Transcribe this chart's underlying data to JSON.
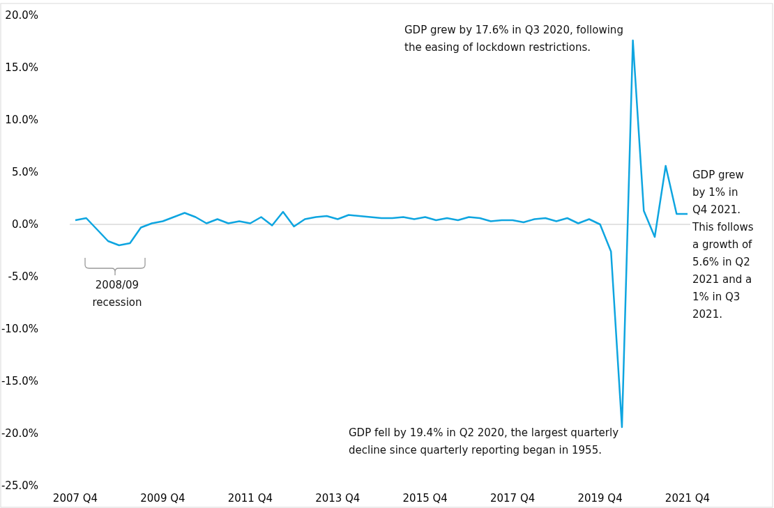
{
  "chart_data": {
    "type": "line",
    "categories": [
      "2007 Q4",
      null,
      null,
      null,
      null,
      null,
      null,
      null,
      "2009 Q4",
      null,
      null,
      null,
      null,
      null,
      null,
      null,
      "2011 Q4",
      null,
      null,
      null,
      null,
      null,
      null,
      null,
      "2013 Q4",
      null,
      null,
      null,
      null,
      null,
      null,
      null,
      "2015 Q4",
      null,
      null,
      null,
      null,
      null,
      null,
      null,
      "2017 Q4",
      null,
      null,
      null,
      null,
      null,
      null,
      null,
      "2019 Q4",
      null,
      null,
      null,
      null,
      null,
      null,
      null,
      "2021 Q4"
    ],
    "series": [
      {
        "color": "#0ea5e0",
        "values": [
          0.4,
          0.6,
          -0.5,
          -1.6,
          -2.0,
          -1.8,
          -0.3,
          0.1,
          0.3,
          0.7,
          1.1,
          0.7,
          0.1,
          0.5,
          0.1,
          0.3,
          0.1,
          0.7,
          -0.1,
          1.2,
          -0.2,
          0.5,
          0.7,
          0.8,
          0.5,
          0.9,
          0.8,
          0.7,
          0.6,
          0.6,
          0.7,
          0.5,
          0.7,
          0.4,
          0.6,
          0.4,
          0.7,
          0.6,
          0.3,
          0.4,
          0.4,
          0.2,
          0.5,
          0.6,
          0.3,
          0.6,
          0.1,
          0.5,
          0.0,
          -2.6,
          -19.4,
          17.6,
          1.3,
          -1.2,
          5.6,
          1.0,
          1.0
        ]
      }
    ],
    "ylim": [
      -25,
      20
    ],
    "yticks": [
      {
        "value": -25,
        "label": "-25.0%"
      },
      {
        "value": -20,
        "label": "-20.0%"
      },
      {
        "value": -15,
        "label": "-15.0%"
      },
      {
        "value": -10,
        "label": "-10.0%"
      },
      {
        "value": -5,
        "label": "-5.0%"
      },
      {
        "value": 0,
        "label": "0.0%"
      },
      {
        "value": 5,
        "label": "5.0%"
      },
      {
        "value": 10,
        "label": "10.0%"
      },
      {
        "value": 15,
        "label": "15.0%"
      },
      {
        "value": 20,
        "label": "20.0%"
      }
    ],
    "ref_lines": [
      {
        "axis": "y",
        "value": 0,
        "color": "#d9d9d9"
      }
    ],
    "marker": "none",
    "line_style": "solid",
    "annotations": [
      "GDP grew by 17.6% in Q3 2020, following the easing of lockdown restrictions.",
      "GDP fell by 19.4% in Q2 2020, the largest quarterly decline since quarterly reporting began in 1955.",
      "GDP grew by 1% in Q4 2021. This follows a growth of 5.6% in Q2 2021 and a 1% in Q3 2021.",
      "2008/09 recession"
    ]
  }
}
